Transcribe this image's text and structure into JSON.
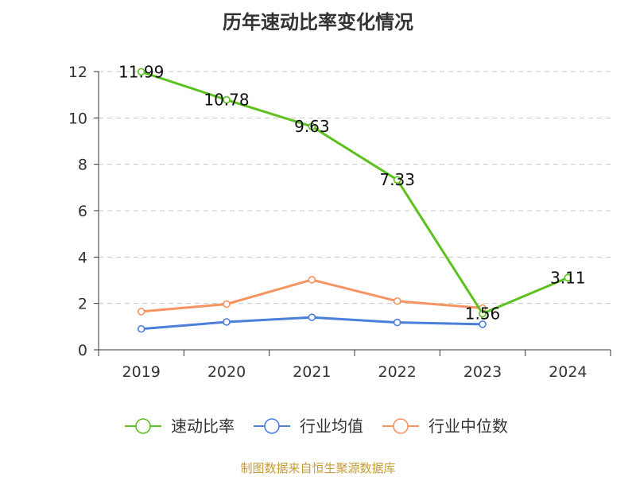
{
  "title": "历年速动比率变化情况",
  "source": "制图数据来自恒生聚源数据库",
  "colors": {
    "source_text": "#c69b38",
    "grid": "#c8c8c8",
    "axis": "#333333"
  },
  "chart_data": {
    "type": "line",
    "categories": [
      "2019",
      "2020",
      "2021",
      "2022",
      "2023",
      "2024"
    ],
    "ylim": [
      0,
      12
    ],
    "yticks": [
      0,
      2,
      4,
      6,
      8,
      10,
      12
    ],
    "grid": true,
    "legend_position": "bottom",
    "series": [
      {
        "name": "速动比率",
        "color": "#5cc11f",
        "values": [
          11.99,
          10.78,
          9.63,
          7.33,
          1.56,
          3.11
        ],
        "labels": [
          "11.99",
          "10.78",
          "9.63",
          "7.33",
          "1.56",
          "3.11"
        ],
        "show_labels": true
      },
      {
        "name": "行业均值",
        "color": "#4a7fda",
        "values": [
          0.9,
          1.2,
          1.4,
          1.18,
          1.1,
          null
        ],
        "show_labels": false
      },
      {
        "name": "行业中位数",
        "color": "#f59461",
        "values": [
          1.65,
          1.97,
          3.02,
          2.1,
          1.8,
          null
        ],
        "show_labels": false
      }
    ]
  }
}
